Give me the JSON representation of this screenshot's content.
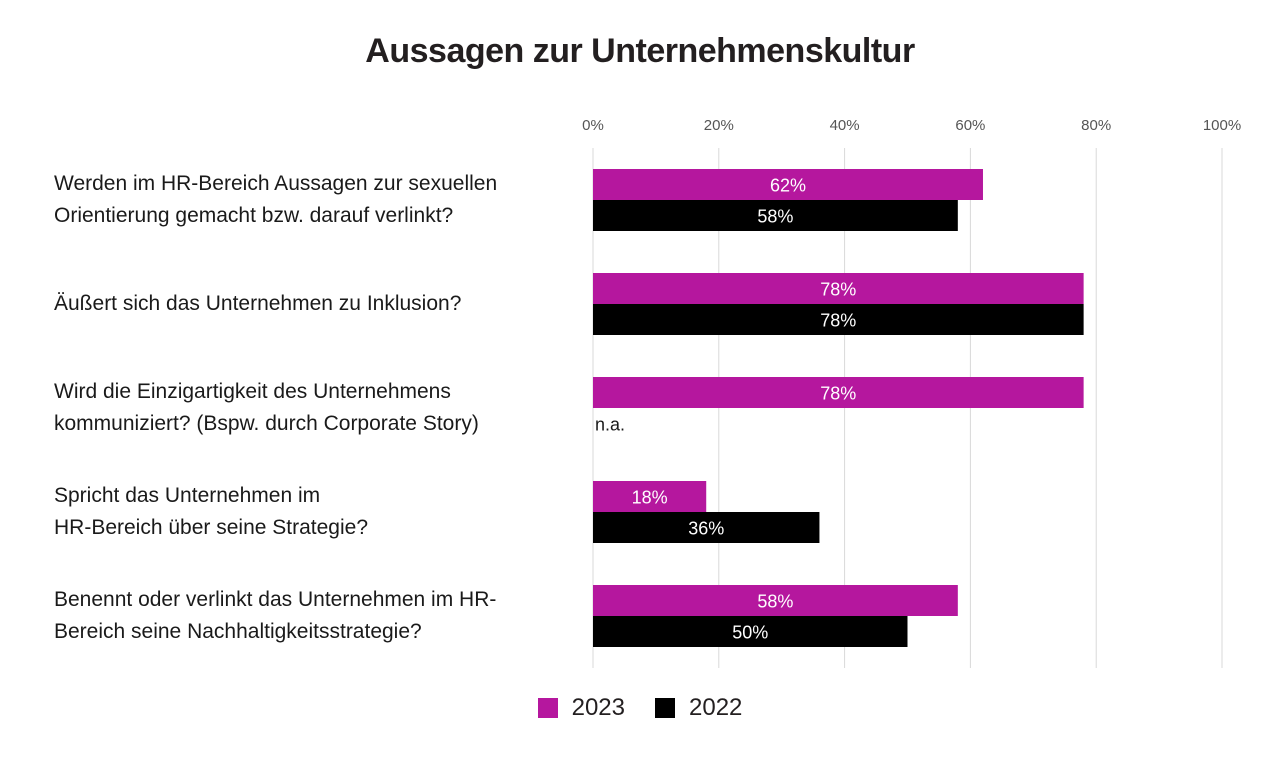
{
  "chart_data": {
    "type": "bar",
    "orientation": "horizontal",
    "title": "Aussagen zur Unternehmenskultur",
    "categories": [
      [
        "Werden im HR-Bereich Aussagen zur sexuellen",
        "Orientierung gemacht bzw. darauf verlinkt?"
      ],
      [
        "Äußert sich das Unternehmen zu Inklusion?"
      ],
      [
        "Wird die Einzigartigkeit des Unternehmens",
        "kommuniziert? (Bspw. durch Corporate Story)"
      ],
      [
        "Spricht das Unternehmen im",
        "HR-Bereich über seine Strategie?"
      ],
      [
        "Benennt oder verlinkt das Unternehmen im HR-",
        "Bereich seine Nachhaltigkeitsstrategie?"
      ]
    ],
    "series": [
      {
        "name": "2023",
        "color": "#b5179e",
        "values": [
          62,
          78,
          78,
          18,
          58
        ],
        "labels": [
          "62%",
          "78%",
          "78%",
          "18%",
          "58%"
        ]
      },
      {
        "name": "2022",
        "color": "#000000",
        "values": [
          58,
          78,
          null,
          36,
          50
        ],
        "labels": [
          "58%",
          "78%",
          "n.a.",
          "36%",
          "50%"
        ]
      }
    ],
    "xlim": [
      0,
      100
    ],
    "xticks": [
      "0%",
      "20%",
      "40%",
      "60%",
      "80%",
      "100%"
    ],
    "grid": true,
    "legend_position": "bottom-center"
  }
}
